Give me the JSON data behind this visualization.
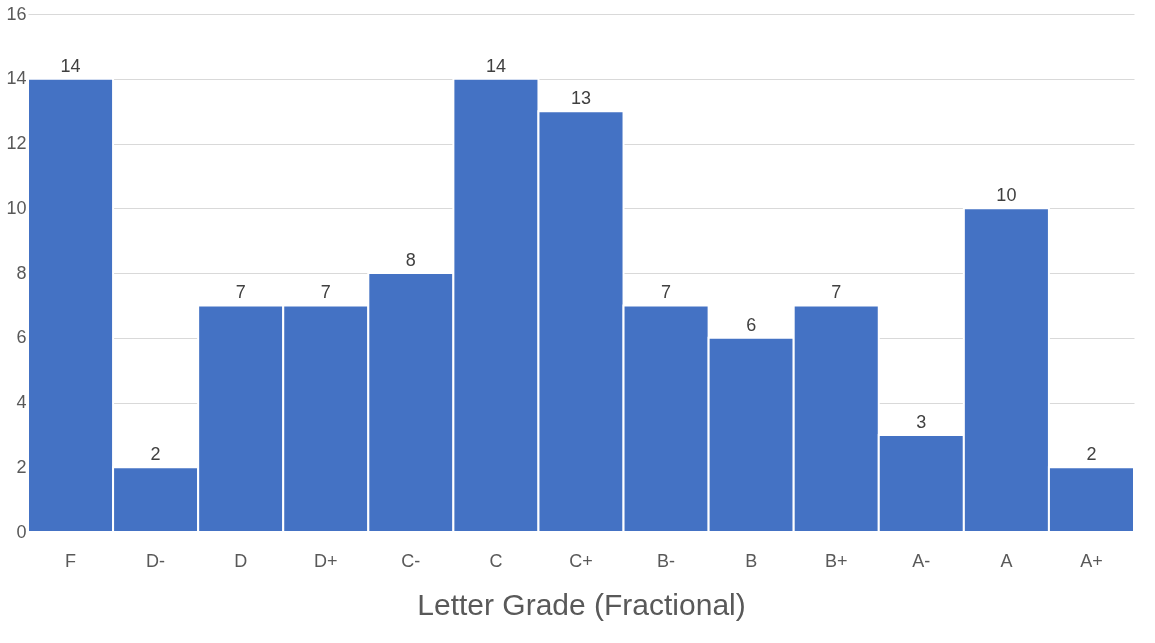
{
  "chart_data": {
    "type": "bar",
    "xlabel": "Letter Grade (Fractional)",
    "categories": [
      "F",
      "D-",
      "D",
      "D+",
      "C-",
      "C",
      "C+",
      "B-",
      "B",
      "B+",
      "A-",
      "A",
      "A+"
    ],
    "values": [
      14,
      2,
      7,
      7,
      8,
      14,
      13,
      7,
      6,
      7,
      3,
      10,
      2
    ],
    "color": "#4472c4",
    "ylim": [
      0,
      16
    ],
    "yticks": [
      0,
      2,
      4,
      6,
      8,
      10,
      12,
      14,
      16
    ],
    "grid": "y",
    "data_labels": true
  }
}
